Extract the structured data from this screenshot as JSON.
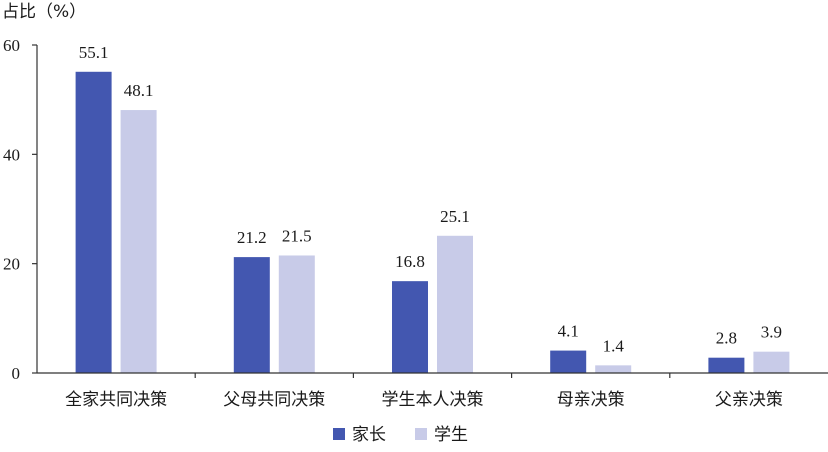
{
  "chart_data": {
    "type": "bar",
    "title": "",
    "xlabel": "",
    "ylabel": "占比（%）",
    "ylim": [
      0,
      60
    ],
    "yticks": [
      0,
      20,
      40,
      60
    ],
    "categories": [
      "全家共同决策",
      "父母共同决策",
      "学生本人决策",
      "母亲决策",
      "父亲决策"
    ],
    "series": [
      {
        "name": "家长",
        "color": "#4357b0",
        "values": [
          55.1,
          21.2,
          16.8,
          4.1,
          2.8
        ]
      },
      {
        "name": "学生",
        "color": "#c8cbe8",
        "values": [
          48.1,
          21.5,
          25.1,
          1.4,
          3.9
        ]
      }
    ],
    "data_labels": true,
    "grid": false,
    "legend_position": "bottom"
  }
}
